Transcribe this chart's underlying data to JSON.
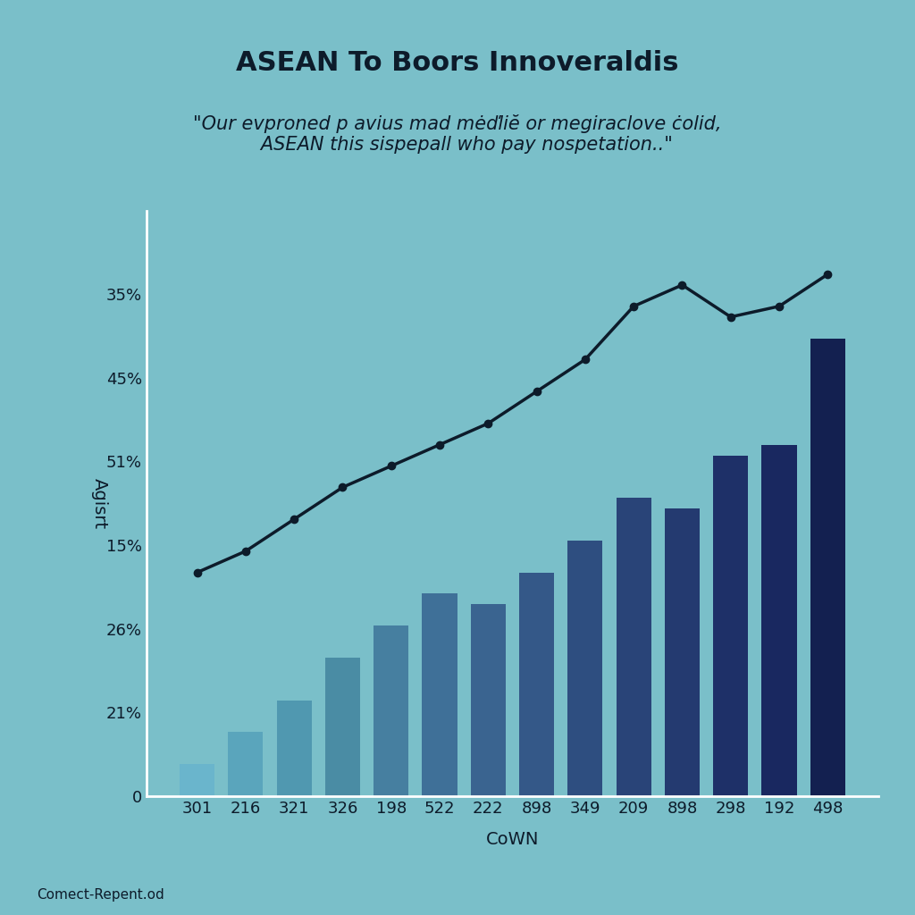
{
  "title": "ASEAN To Boors Innoveraldis",
  "subtitle": "\"Our evproned p avius mad mėďliĕ or megiraclove ċolid,\n   ASEAN this sispepall who pay nospetation..\"",
  "xlabel": "CoWN",
  "ylabel": "Agisrt",
  "footer": "Comect-Repent.od",
  "background_color": "#7abfc9",
  "bar_colors": [
    "#6ab5cc",
    "#5aa5bc",
    "#5098b0",
    "#4a8ca4",
    "#467fa0",
    "#3f7098",
    "#3a6490",
    "#345888",
    "#2e4e80",
    "#294478",
    "#243a70",
    "#1e3068",
    "#192860",
    "#132050"
  ],
  "categories": [
    "301",
    "216",
    "321",
    "326",
    "198",
    "522",
    "222",
    "898",
    "349",
    "209",
    "898",
    "298",
    "192",
    "498"
  ],
  "bar_heights": [
    3,
    6,
    9,
    13,
    16,
    19,
    18,
    21,
    24,
    28,
    27,
    32,
    33,
    43
  ],
  "line_x": [
    0,
    1,
    2,
    3,
    4,
    5,
    6,
    7,
    8,
    9,
    10,
    11,
    12,
    13
  ],
  "line_values": [
    21,
    23,
    26,
    29,
    31,
    33,
    35,
    38,
    41,
    46,
    48,
    45,
    46,
    49
  ],
  "ylim": [
    0,
    55
  ],
  "ytick_positions": [
    0,
    7.86,
    15.71,
    23.57,
    31.43,
    39.29,
    47.14
  ],
  "ytick_labels": [
    "0",
    "21%",
    "26%",
    "15%",
    "51%",
    "45%",
    "35%"
  ],
  "title_fontsize": 22,
  "subtitle_fontsize": 15,
  "axis_fontsize": 14,
  "tick_fontsize": 13
}
